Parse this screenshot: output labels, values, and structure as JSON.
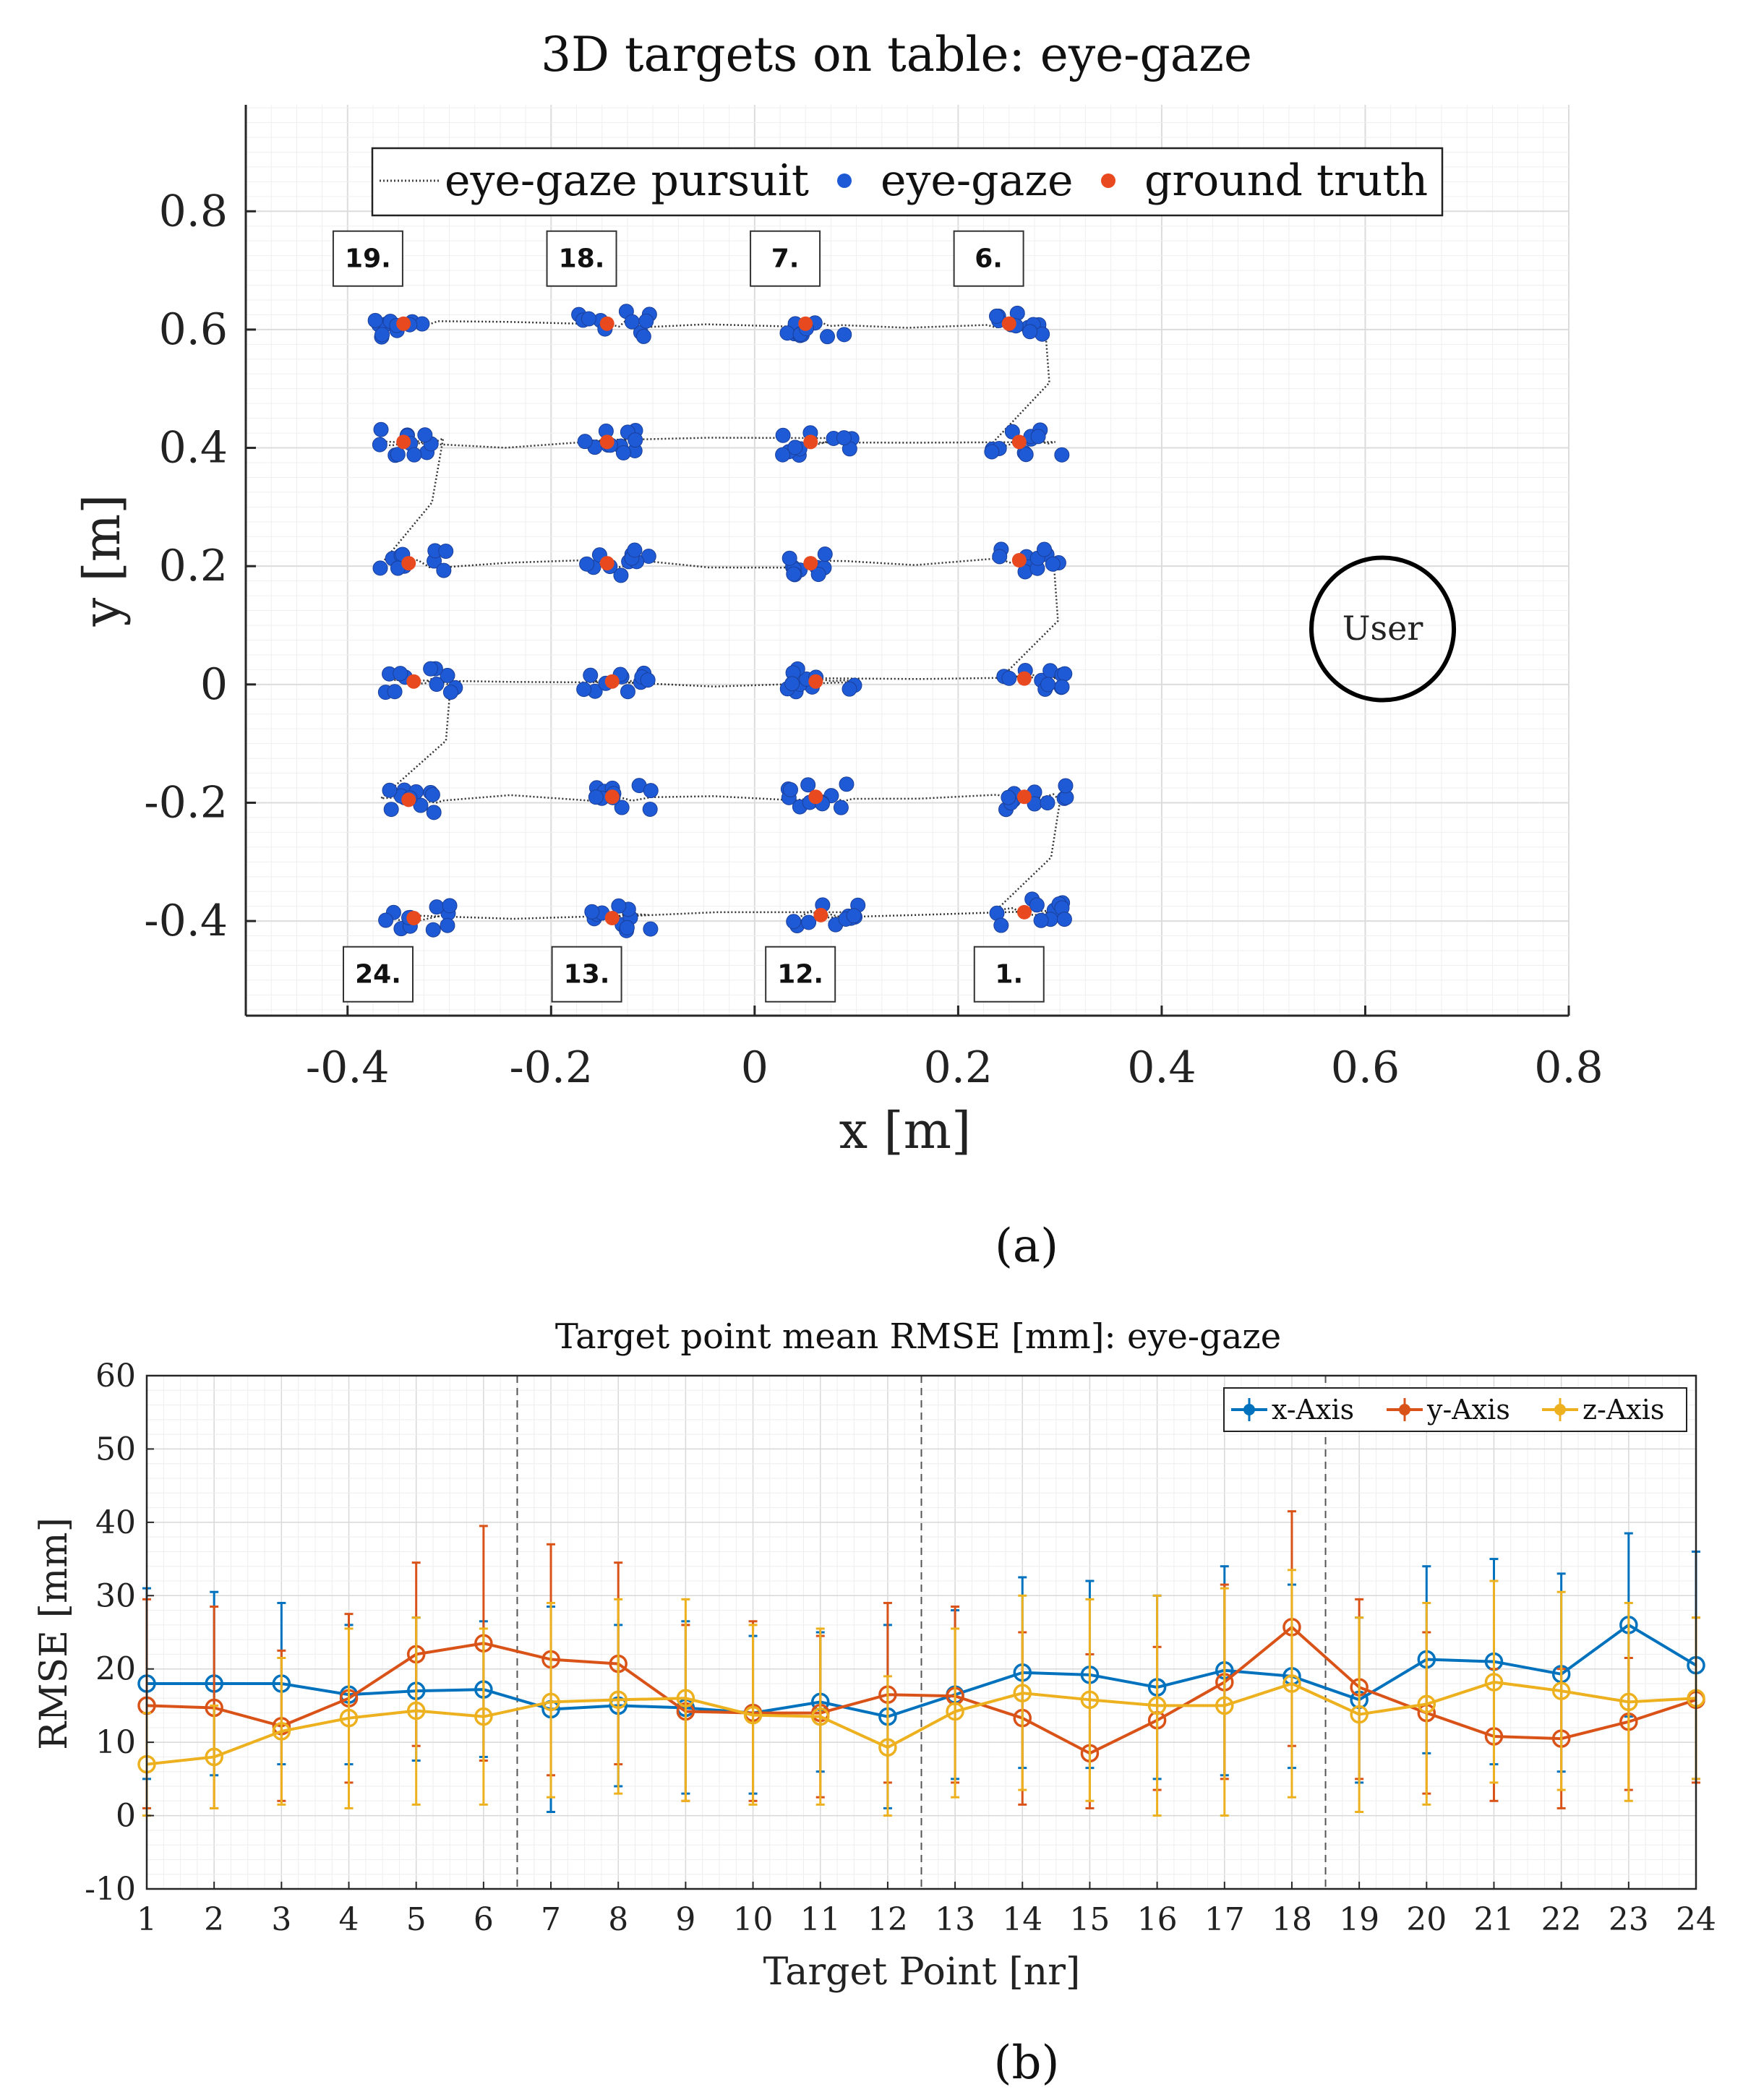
{
  "colors": {
    "blue": "#0072bd",
    "orange": "#d95319",
    "yellow": "#edb120",
    "dot_blue": "#1f5ad6",
    "dot_red": "#e8491f",
    "pursuit": "#333333"
  },
  "captions": {
    "a": "(a)",
    "b": "(b)"
  },
  "chart_data": [
    {
      "type": "scatter",
      "title": "3D targets on table: eye-gaze",
      "xlabel": "x [m]",
      "ylabel": "y [m]",
      "xlim": [
        -0.5,
        0.8
      ],
      "ylim": [
        -0.56,
        0.98
      ],
      "xticks": [
        -0.4,
        -0.2,
        0,
        0.2,
        0.4,
        0.6,
        0.8
      ],
      "yticks": [
        -0.4,
        -0.2,
        0,
        0.2,
        0.4,
        0.6,
        0.8
      ],
      "xtick_labels": [
        "-0.4",
        "-0.2",
        "0",
        "0.2",
        "0.4",
        "0.6",
        "0.8"
      ],
      "ytick_labels": [
        "-0.4",
        "-0.2",
        "0",
        "0.2",
        "0.4",
        "0.6",
        "0.8"
      ],
      "legend": {
        "position": "top",
        "entries": [
          "eye-gaze pursuit",
          "eye-gaze",
          "ground truth"
        ]
      },
      "ground_truth": [
        {
          "x": -0.345,
          "y": 0.61
        },
        {
          "x": -0.145,
          "y": 0.61
        },
        {
          "x": 0.05,
          "y": 0.61
        },
        {
          "x": 0.25,
          "y": 0.61
        },
        {
          "x": -0.345,
          "y": 0.41
        },
        {
          "x": -0.145,
          "y": 0.41
        },
        {
          "x": 0.055,
          "y": 0.41
        },
        {
          "x": 0.26,
          "y": 0.41
        },
        {
          "x": -0.34,
          "y": 0.205
        },
        {
          "x": -0.145,
          "y": 0.205
        },
        {
          "x": 0.055,
          "y": 0.205
        },
        {
          "x": 0.26,
          "y": 0.21
        },
        {
          "x": -0.335,
          "y": 0.005
        },
        {
          "x": -0.14,
          "y": 0.005
        },
        {
          "x": 0.06,
          "y": 0.005
        },
        {
          "x": 0.265,
          "y": 0.01
        },
        {
          "x": -0.34,
          "y": -0.195
        },
        {
          "x": -0.14,
          "y": -0.19
        },
        {
          "x": 0.06,
          "y": -0.19
        },
        {
          "x": 0.265,
          "y": -0.19
        },
        {
          "x": -0.335,
          "y": -0.395
        },
        {
          "x": -0.14,
          "y": -0.395
        },
        {
          "x": 0.065,
          "y": -0.39
        },
        {
          "x": 0.265,
          "y": -0.385
        }
      ],
      "target_labels": [
        {
          "text": "19.",
          "x": -0.38,
          "y": 0.72
        },
        {
          "text": "18.",
          "x": -0.17,
          "y": 0.72
        },
        {
          "text": "7.",
          "x": 0.03,
          "y": 0.72
        },
        {
          "text": "6.",
          "x": 0.23,
          "y": 0.72
        },
        {
          "text": "24.",
          "x": -0.37,
          "y": -0.49
        },
        {
          "text": "13.",
          "x": -0.165,
          "y": -0.49
        },
        {
          "text": "12.",
          "x": 0.045,
          "y": -0.49
        },
        {
          "text": "1.",
          "x": 0.25,
          "y": -0.49
        }
      ],
      "user": {
        "label": "User",
        "x": 0.61,
        "y": 0.1,
        "radius": 0.07
      }
    },
    {
      "type": "line",
      "title": "Target point mean RMSE [mm]: eye-gaze",
      "xlabel": "Target Point [nr]",
      "ylabel": "RMSE [mm]",
      "xlim": [
        1,
        24
      ],
      "ylim": [
        -10,
        60
      ],
      "categories": [
        1,
        2,
        3,
        4,
        5,
        6,
        7,
        8,
        9,
        10,
        11,
        12,
        13,
        14,
        15,
        16,
        17,
        18,
        19,
        20,
        21,
        22,
        23,
        24
      ],
      "yticks": [
        -10,
        0,
        10,
        20,
        30,
        40,
        50,
        60
      ],
      "ytick_labels": [
        "-10",
        "0",
        "10",
        "20",
        "30",
        "40",
        "50",
        "60"
      ],
      "separators": [
        6.5,
        12.5,
        18.5
      ],
      "legend": {
        "position": "top-right"
      },
      "series": [
        {
          "name": "x-Axis",
          "values": [
            18,
            18,
            18,
            16.5,
            17,
            17.2,
            14.5,
            15,
            14.7,
            14,
            15.5,
            13.5,
            16.5,
            19.5,
            19.2,
            17.5,
            19.8,
            19,
            15.8,
            21.3,
            21,
            19.3,
            26,
            20.5
          ],
          "upper": [
            31,
            30.5,
            29,
            26,
            27,
            26.5,
            28.5,
            26,
            26.5,
            24.5,
            25,
            26,
            28,
            32.5,
            32,
            30,
            34,
            31.5,
            27,
            34,
            35,
            33,
            38.5,
            36
          ],
          "lower": [
            5,
            5.5,
            7,
            7,
            7.5,
            8,
            0.5,
            4,
            3,
            3,
            6,
            1,
            5,
            6.5,
            6.5,
            5,
            5.5,
            6.5,
            4.5,
            8.5,
            7,
            6,
            13.5,
            5
          ]
        },
        {
          "name": "y-Axis",
          "values": [
            15,
            14.7,
            12.2,
            16,
            22,
            23.5,
            21.3,
            20.7,
            14.2,
            14,
            14,
            16.5,
            16.3,
            13.3,
            8.5,
            13,
            18.2,
            25.7,
            17.5,
            14,
            10.8,
            10.5,
            12.8,
            15.8
          ],
          "upper": [
            29.5,
            28.5,
            22.5,
            27.5,
            34.5,
            39.5,
            37,
            34.5,
            26,
            26.5,
            24.5,
            29,
            28.5,
            25,
            22,
            23,
            31.5,
            41.5,
            29.5,
            25,
            20,
            20,
            21.5,
            27
          ],
          "lower": [
            1,
            1,
            2,
            4.5,
            9.5,
            7.5,
            5.5,
            7,
            2,
            2,
            2.5,
            4.5,
            4.5,
            1.5,
            1,
            3.5,
            5,
            9.5,
            5,
            3,
            2,
            1,
            3.5,
            4.5
          ]
        },
        {
          "name": "z-Axis",
          "values": [
            7,
            8,
            11.5,
            13.3,
            14.3,
            13.5,
            15.5,
            15.8,
            16,
            13.7,
            13.5,
            9.3,
            14.2,
            16.7,
            15.8,
            15,
            15,
            18,
            13.8,
            15.2,
            18.2,
            17,
            15.5,
            16
          ],
          "upper": [
            14,
            15,
            21.5,
            25.5,
            27,
            25.5,
            29,
            29.5,
            29.5,
            26,
            25.5,
            19,
            25.5,
            30,
            29.5,
            30,
            31,
            33.5,
            27,
            29,
            32,
            30.5,
            29,
            27
          ],
          "lower": [
            0,
            1,
            1.5,
            1,
            1.5,
            1.5,
            2.5,
            3,
            2,
            1.5,
            1.5,
            0,
            2.5,
            3.5,
            2,
            0,
            0,
            2.5,
            0.5,
            1.5,
            4.5,
            3.5,
            2,
            5
          ]
        }
      ]
    }
  ]
}
